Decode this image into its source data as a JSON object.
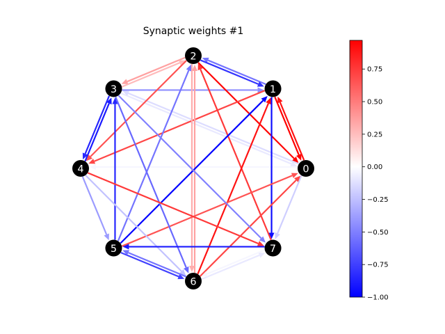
{
  "chart_data": {
    "type": "network",
    "title": "Synaptic weights #1",
    "nodes": [
      "0",
      "1",
      "2",
      "3",
      "4",
      "5",
      "6",
      "7"
    ],
    "layout": "circle",
    "edges": [
      {
        "source": "2",
        "target": "3",
        "weight": 0.35
      },
      {
        "source": "3",
        "target": "2",
        "weight": 0.25
      },
      {
        "source": "1",
        "target": "2",
        "weight": -0.55
      },
      {
        "source": "2",
        "target": "1",
        "weight": -0.8
      },
      {
        "source": "3",
        "target": "1",
        "weight": -0.45
      },
      {
        "source": "2",
        "target": "0",
        "weight": 0.95
      },
      {
        "source": "1",
        "target": "0",
        "weight": 1.0
      },
      {
        "source": "0",
        "target": "1",
        "weight": 0.9
      },
      {
        "source": "3",
        "target": "0",
        "weight": -0.1
      },
      {
        "source": "0",
        "target": "3",
        "weight": -0.15
      },
      {
        "source": "1",
        "target": "4",
        "weight": 0.7
      },
      {
        "source": "0",
        "target": "4",
        "weight": -0.05
      },
      {
        "source": "4",
        "target": "3",
        "weight": -0.9
      },
      {
        "source": "3",
        "target": "4",
        "weight": -0.85
      },
      {
        "source": "2",
        "target": "4",
        "weight": 0.65
      },
      {
        "source": "5",
        "target": "2",
        "weight": -0.55
      },
      {
        "source": "6",
        "target": "2",
        "weight": 0.35
      },
      {
        "source": "2",
        "target": "6",
        "weight": 0.3
      },
      {
        "source": "7",
        "target": "2",
        "weight": 0.75
      },
      {
        "source": "5",
        "target": "1",
        "weight": -1.0
      },
      {
        "source": "6",
        "target": "1",
        "weight": 0.9
      },
      {
        "source": "1",
        "target": "7",
        "weight": -0.95
      },
      {
        "source": "0",
        "target": "7",
        "weight": -0.2
      },
      {
        "source": "5",
        "target": "0",
        "weight": 0.65
      },
      {
        "source": "6",
        "target": "0",
        "weight": 0.7
      },
      {
        "source": "5",
        "target": "3",
        "weight": -0.85
      },
      {
        "source": "3",
        "target": "6",
        "weight": -0.6
      },
      {
        "source": "3",
        "target": "7",
        "weight": -0.5
      },
      {
        "source": "4",
        "target": "5",
        "weight": -0.4
      },
      {
        "source": "4",
        "target": "6",
        "weight": -0.25
      },
      {
        "source": "4",
        "target": "7",
        "weight": 0.75
      },
      {
        "source": "7",
        "target": "5",
        "weight": -0.9
      },
      {
        "source": "5",
        "target": "6",
        "weight": -0.75
      },
      {
        "source": "6",
        "target": "5",
        "weight": -0.55
      },
      {
        "source": "6",
        "target": "7",
        "weight": -0.1
      },
      {
        "source": "7",
        "target": "6",
        "weight": -0.05
      }
    ],
    "colorbar": {
      "cmap": "bwr",
      "range": [
        -1.0,
        0.97
      ],
      "ticks": [
        -1.0,
        -0.75,
        -0.5,
        -0.25,
        0.0,
        0.25,
        0.5,
        0.75
      ],
      "tick_labels": [
        "−1.00",
        "−0.75",
        "−0.50",
        "−0.25",
        "0.00",
        "0.25",
        "0.50",
        "0.75"
      ]
    }
  }
}
